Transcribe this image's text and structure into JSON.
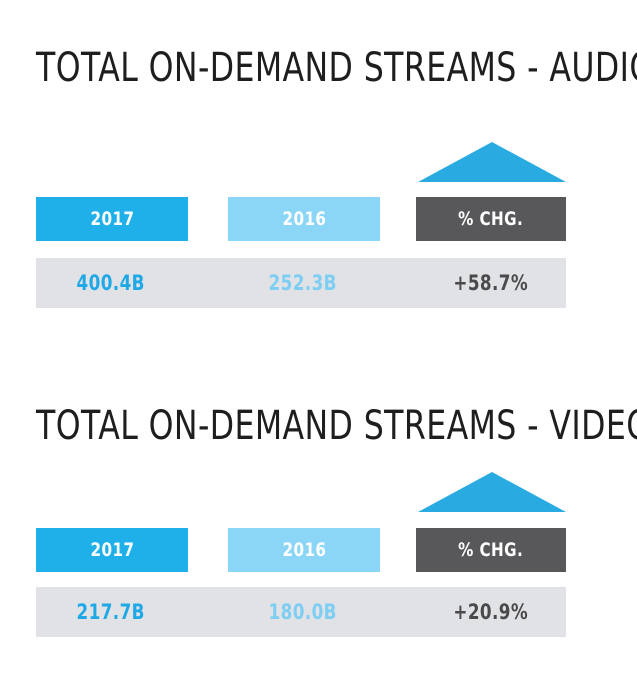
{
  "colors": {
    "y2017": "#1fb0ea",
    "y2016": "#8bd6f7",
    "change": "#58585b",
    "value_row": "#e1e2e6",
    "increase_arrow": "#29abe2"
  },
  "chart_data": [
    {
      "type": "table",
      "title": "TOTAL ON-DEMAND STREAMS - AUDIO",
      "columns": [
        "2017",
        "2016",
        "% CHG."
      ],
      "values": [
        "400.4B",
        "252.3B",
        "+58.7%"
      ],
      "change_direction": "up"
    },
    {
      "type": "table",
      "title": "TOTAL ON-DEMAND STREAMS - VIDEO",
      "columns": [
        "2017",
        "2016",
        "% CHG."
      ],
      "values": [
        "217.7B",
        "180.0B",
        "+20.9%"
      ],
      "change_direction": "up"
    }
  ]
}
